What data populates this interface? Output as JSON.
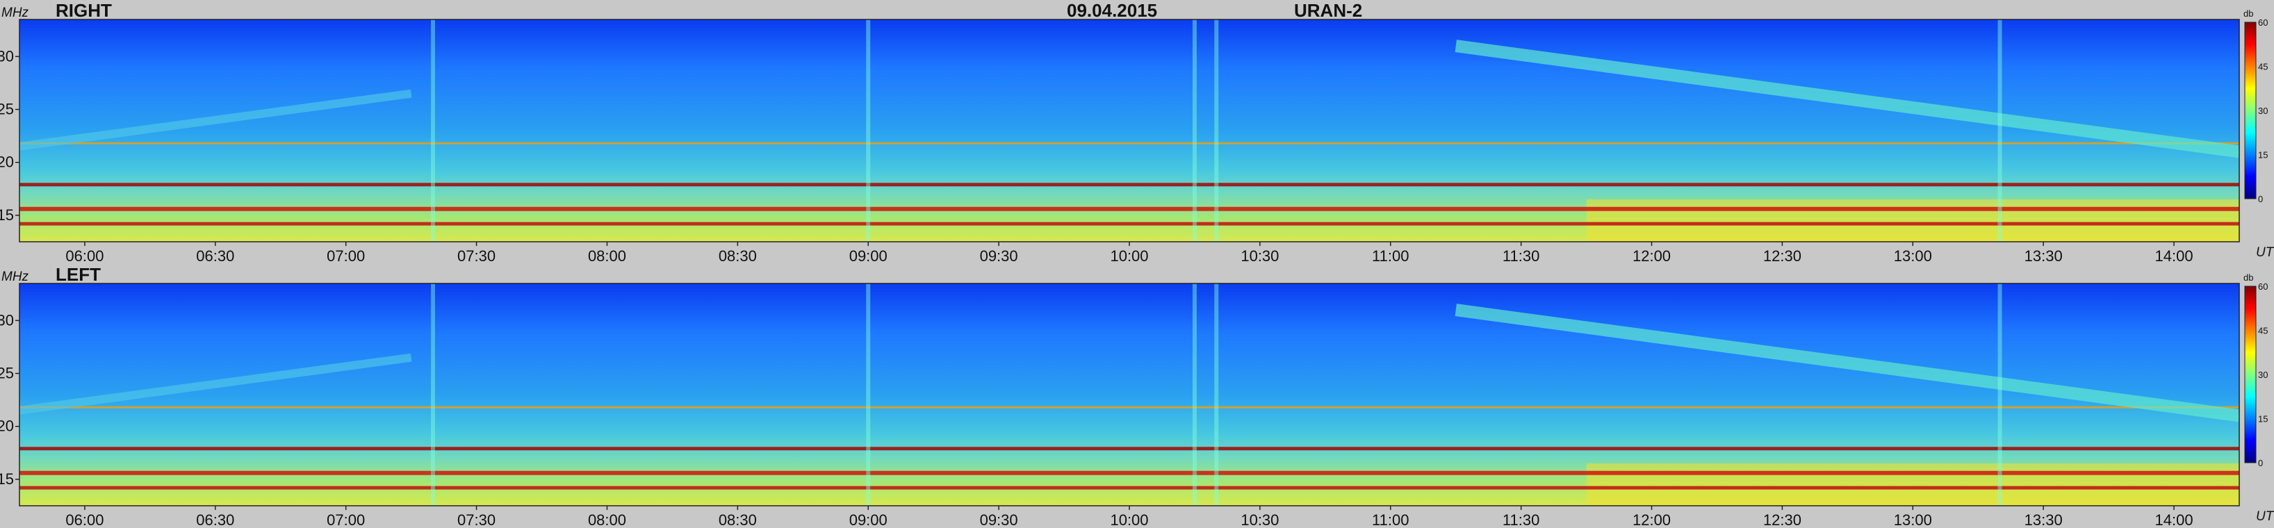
{
  "header": {
    "date": "09.04.2015",
    "instrument": "URAN-2"
  },
  "colors": {
    "background": "#c8c8c8",
    "colormap": [
      "#00007f",
      "#0000ff",
      "#0080ff",
      "#00ffff",
      "#80ff80",
      "#ffff00",
      "#ff8000",
      "#ff0000",
      "#7f0000"
    ]
  },
  "chart_data": [
    {
      "type": "heatmap",
      "title": "RIGHT",
      "ylabel": "MHz",
      "xlabel": "UT",
      "ylim": [
        12.5,
        33.5
      ],
      "yticks": [
        "15",
        "20",
        "25",
        "30"
      ],
      "xlim": [
        "05:45",
        "14:15"
      ],
      "xticks": [
        "06:00",
        "06:30",
        "07:00",
        "07:30",
        "08:00",
        "08:30",
        "09:00",
        "09:30",
        "10:00",
        "10:30",
        "11:00",
        "11:30",
        "12:00",
        "12:30",
        "13:00",
        "13:30",
        "14:00"
      ],
      "colorbar": {
        "label": "db",
        "range": [
          0,
          60
        ],
        "ticks": [
          "0",
          "15",
          "30",
          "45",
          "60"
        ]
      },
      "features": {
        "persistent_bands_mhz": [
          14.2,
          15.6,
          17.9,
          21.8
        ],
        "drifting_band": {
          "start": {
            "time": "11:15",
            "freq_mhz": 31
          },
          "end": {
            "time": "14:15",
            "freq_mhz": 21
          }
        },
        "early_band": {
          "start": {
            "time": "05:45",
            "freq_mhz": 21.5
          },
          "end": {
            "time": "07:15",
            "freq_mhz": 26.5
          }
        },
        "bursts_ut": [
          "07:20",
          "09:00",
          "10:15",
          "10:20",
          "13:20"
        ]
      }
    },
    {
      "type": "heatmap",
      "title": "LEFT",
      "ylabel": "MHz",
      "xlabel": "UT",
      "ylim": [
        12.5,
        33.5
      ],
      "yticks": [
        "15",
        "20",
        "25",
        "30"
      ],
      "xlim": [
        "05:45",
        "14:15"
      ],
      "xticks": [
        "06:00",
        "06:30",
        "07:00",
        "07:30",
        "08:00",
        "08:30",
        "09:00",
        "09:30",
        "10:00",
        "10:30",
        "11:00",
        "11:30",
        "12:00",
        "12:30",
        "13:00",
        "13:30",
        "14:00"
      ],
      "colorbar": {
        "label": "db",
        "range": [
          0,
          60
        ],
        "ticks": [
          "0",
          "15",
          "30",
          "45",
          "60"
        ]
      },
      "features": {
        "persistent_bands_mhz": [
          14.2,
          15.6,
          17.9,
          21.8
        ],
        "drifting_band": {
          "start": {
            "time": "11:15",
            "freq_mhz": 31
          },
          "end": {
            "time": "14:15",
            "freq_mhz": 21
          }
        },
        "early_band": {
          "start": {
            "time": "05:45",
            "freq_mhz": 21.5
          },
          "end": {
            "time": "07:15",
            "freq_mhz": 26.5
          }
        },
        "bursts_ut": [
          "07:20",
          "09:00",
          "10:15",
          "10:20",
          "13:20"
        ]
      }
    }
  ]
}
